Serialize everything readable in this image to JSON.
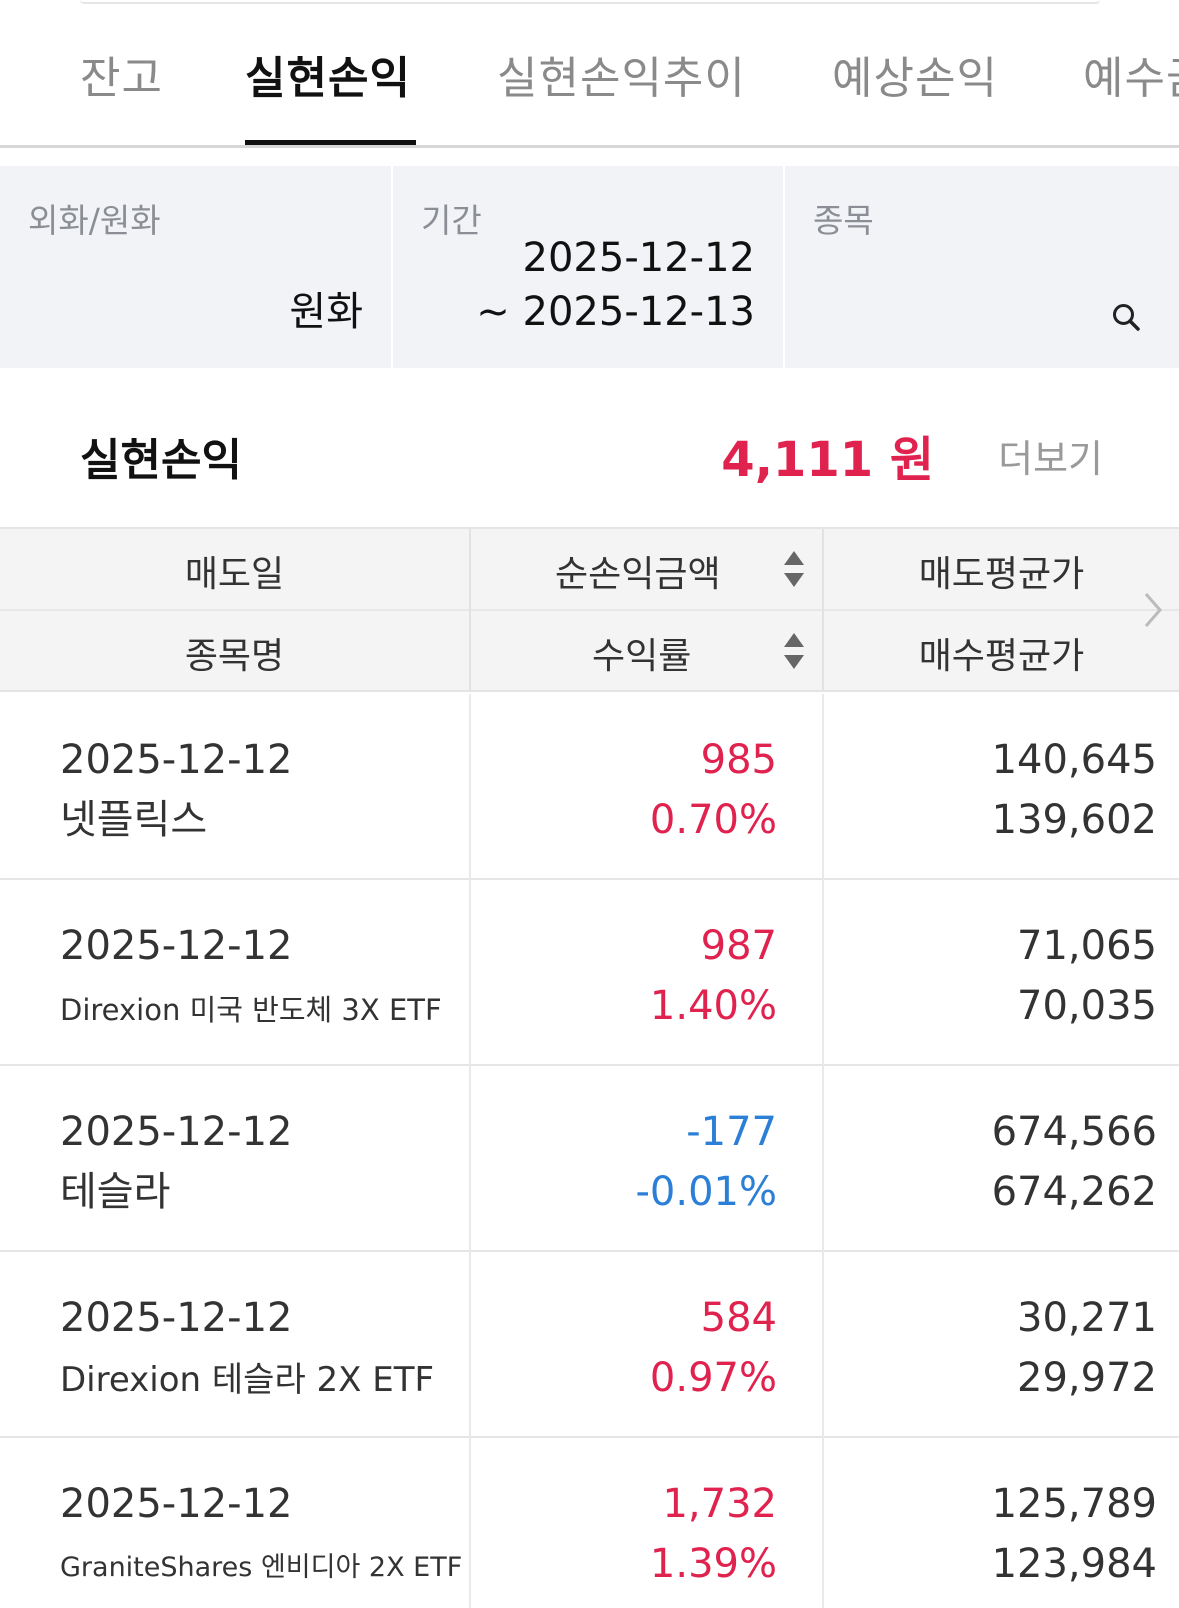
{
  "tabs": [
    {
      "label": "잔고",
      "active": false
    },
    {
      "label": "실현손익",
      "active": true
    },
    {
      "label": "실현손익추이",
      "active": false
    },
    {
      "label": "예상손익",
      "active": false
    },
    {
      "label": "예수금",
      "active": false
    }
  ],
  "filters": {
    "currency": {
      "label": "외화/원화",
      "value": "원화"
    },
    "period": {
      "label": "기간",
      "start": "2025-12-12",
      "end": "~ 2025-12-13"
    },
    "stock": {
      "label": "종목",
      "value": "",
      "icon": "search-icon"
    }
  },
  "summary": {
    "title": "실현손익",
    "amount": "4,111 원",
    "more_label": "더보기",
    "amount_color": "#e0224e"
  },
  "table": {
    "headers": {
      "sell_date": "매도일",
      "net_pl": "순손익금액",
      "sell_avg": "매도평균가",
      "stock_name": "종목명",
      "return_rate": "수익률",
      "buy_avg": "매수평균가"
    },
    "rows": [
      {
        "date": "2025-12-12",
        "name": "넷플릭스",
        "pl": "985",
        "rate": "0.70%",
        "sell_avg": "140,645",
        "buy_avg": "139,602",
        "trend": "pos"
      },
      {
        "date": "2025-12-12",
        "name": "Direxion 미국 반도체 3X ETF",
        "pl": "987",
        "rate": "1.40%",
        "sell_avg": "71,065",
        "buy_avg": "70,035",
        "trend": "pos"
      },
      {
        "date": "2025-12-12",
        "name": "테슬라",
        "pl": "-177",
        "rate": "-0.01%",
        "sell_avg": "674,566",
        "buy_avg": "674,262",
        "trend": "neg"
      },
      {
        "date": "2025-12-12",
        "name": "Direxion 테슬라 2X ETF",
        "pl": "584",
        "rate": "0.97%",
        "sell_avg": "30,271",
        "buy_avg": "29,972",
        "trend": "pos"
      },
      {
        "date": "2025-12-12",
        "name": "GraniteShares 엔비디아 2X ETF",
        "pl": "1,732",
        "rate": "1.39%",
        "sell_avg": "125,789",
        "buy_avg": "123,984",
        "trend": "pos"
      }
    ]
  },
  "colors": {
    "positive": "#e0224e",
    "negative": "#2b7fd6"
  }
}
